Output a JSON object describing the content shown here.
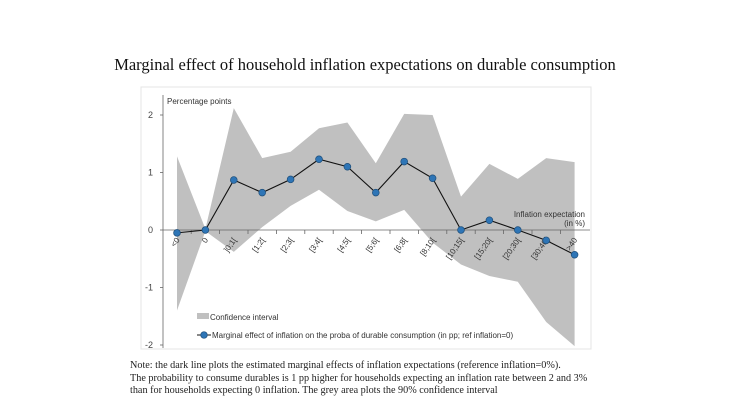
{
  "chart_data": {
    "type": "line",
    "title": "Marginal effect of household inflation expectations on durable consumption",
    "ylabel": "Percentage points",
    "xlabel": "Inflation expectation",
    "xlabel_unit": "(in %)",
    "categories": [
      "<0",
      "0",
      "]0;1[",
      "[1;2[",
      "[2;3[",
      "[3;4[",
      "[4;5[",
      "[5;6[",
      "[6;8[",
      "[8;10[",
      "[10;15[",
      "[15;20[",
      "[20;30[",
      "[30;40[",
      ">40"
    ],
    "ylim": [
      -2,
      2.5
    ],
    "yticks": [
      -2,
      -1,
      0,
      1,
      2
    ],
    "grid": false,
    "legend_position": "bottom-left",
    "series": [
      {
        "name": "Marginal effect of inflation on the proba of durable consumption (in pp; ref inflation=0)",
        "type": "line",
        "color": "#2e75b6",
        "values": [
          -0.05,
          0,
          0.87,
          0.65,
          0.88,
          1.23,
          1.1,
          0.65,
          1.19,
          0.9,
          0,
          0.17,
          0,
          -0.18,
          -0.43
        ]
      },
      {
        "name": "Confidence interval",
        "type": "area",
        "color": "#c0c0c0",
        "upper": [
          1.28,
          0.02,
          2.12,
          1.25,
          1.36,
          1.77,
          1.87,
          1.16,
          2.02,
          2.0,
          0.58,
          1.15,
          0.89,
          1.25,
          1.18
        ],
        "lower": [
          -1.4,
          -0.02,
          -0.38,
          0.05,
          0.42,
          0.7,
          0.33,
          0.15,
          0.35,
          -0.22,
          -0.6,
          -0.8,
          -0.9,
          -1.6,
          -2.02
        ]
      }
    ]
  },
  "note": {
    "lines": [
      "Note: the dark line plots the estimated marginal effects of inflation expectations (reference inflation=0%).",
      "The probability to consume durables is 1 pp higher for households expecting an inflation rate between 2 and 3%",
      "than for households expecting 0 inflation. The grey area plots the 90% confidence interval"
    ]
  }
}
